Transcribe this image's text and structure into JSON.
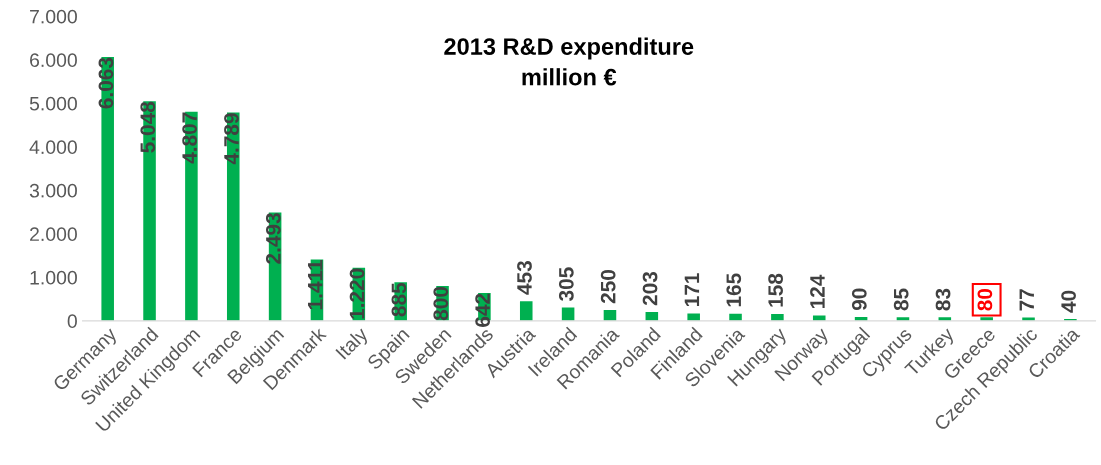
{
  "chart_data": {
    "type": "bar",
    "title": "2013 R&D expenditure\nmillion €",
    "categories": [
      "Germany",
      "Switzerland",
      "United Kingdom",
      "France",
      "Belgium",
      "Denmark",
      "Italy",
      "Spain",
      "Sweden",
      "Netherlands",
      "Austria",
      "Ireland",
      "Romania",
      "Poland",
      "Finland",
      "Slovenia",
      "Hungary",
      "Norway",
      "Portugal",
      "Cyprus",
      "Turkey",
      "Greece",
      "Czech Republic",
      "Croatia"
    ],
    "values": [
      6063,
      5048,
      4807,
      4789,
      2493,
      1411,
      1220,
      885,
      800,
      642,
      453,
      305,
      250,
      203,
      171,
      165,
      158,
      124,
      90,
      85,
      83,
      80,
      77,
      40
    ],
    "value_labels": [
      "6.063",
      "5.048",
      "4.807",
      "4.789",
      "2.493",
      "1.411",
      "1.220",
      "885",
      "800",
      "642",
      "453",
      "305",
      "250",
      "203",
      "171",
      "165",
      "158",
      "124",
      "90",
      "85",
      "83",
      null,
      "77",
      "40"
    ],
    "annotations": [
      {
        "text": "80",
        "x": "Greece",
        "y": 80
      }
    ],
    "color": "#00b050",
    "ylim": [
      0,
      7000
    ],
    "yticks": [
      {
        "value": 0,
        "label": "0"
      },
      {
        "value": 1000,
        "label": "1.000"
      },
      {
        "value": 2000,
        "label": "2.000"
      },
      {
        "value": 3000,
        "label": "3.000"
      },
      {
        "value": 4000,
        "label": "4.000"
      },
      {
        "value": 5000,
        "label": "5.000"
      },
      {
        "value": 6000,
        "label": "6.000"
      },
      {
        "value": 7000,
        "label": "7.000"
      }
    ],
    "grid": false
  }
}
